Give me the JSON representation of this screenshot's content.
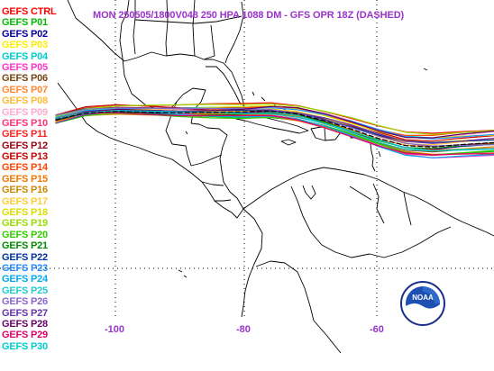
{
  "title": "MON 250505/1800V048  250 HPA 1088 DM - GFS OPR 18Z (DASHED)",
  "legend": [
    {
      "label": "GEFS CTRL",
      "color": "#ff0000"
    },
    {
      "label": "GEFS P01",
      "color": "#00bb00"
    },
    {
      "label": "GEFS P02",
      "color": "#000099"
    },
    {
      "label": "GEFS P03",
      "color": "#ffee00"
    },
    {
      "label": "GEFS P04",
      "color": "#00cccc"
    },
    {
      "label": "GEFS P05",
      "color": "#ff33cc"
    },
    {
      "label": "GEFS P06",
      "color": "#774411"
    },
    {
      "label": "GEFS P07",
      "color": "#ff8833"
    },
    {
      "label": "GEFS P08",
      "color": "#ffbb33"
    },
    {
      "label": "GEFS P09",
      "color": "#ffaacc"
    },
    {
      "label": "GEFS P10",
      "color": "#ff3377"
    },
    {
      "label": "GEFS P11",
      "color": "#ff2222"
    },
    {
      "label": "GEFS P12",
      "color": "#990011"
    },
    {
      "label": "GEFS P13",
      "color": "#cc0000"
    },
    {
      "label": "GEFS P14",
      "color": "#ff4400"
    },
    {
      "label": "GEFS P15",
      "color": "#ee7700"
    },
    {
      "label": "GEFS P16",
      "color": "#cc8800"
    },
    {
      "label": "GEFS P17",
      "color": "#ffcc33"
    },
    {
      "label": "GEFS P18",
      "color": "#dddd00"
    },
    {
      "label": "GEFS P19",
      "color": "#99dd00"
    },
    {
      "label": "GEFS P20",
      "color": "#33cc00"
    },
    {
      "label": "GEFS P21",
      "color": "#008800"
    },
    {
      "label": "GEFS P22",
      "color": "#003399"
    },
    {
      "label": "GEFS P23",
      "color": "#2288ff"
    },
    {
      "label": "GEFS P24",
      "color": "#00aaee"
    },
    {
      "label": "GEFS P25",
      "color": "#22cccc"
    },
    {
      "label": "GEFS P26",
      "color": "#8866cc"
    },
    {
      "label": "GEFS P27",
      "color": "#6633aa"
    },
    {
      "label": "GEFS P28",
      "color": "#660066"
    },
    {
      "label": "GEFS P29",
      "color": "#dd0066"
    },
    {
      "label": "GEFS P30",
      "color": "#00cccc"
    }
  ],
  "longitude_labels": [
    "-100",
    "-80",
    "-60"
  ],
  "logo_text": "NOAA",
  "colors": {
    "title": "#9933cc",
    "axis_labels": "#9933cc",
    "coastline": "#000000",
    "graticule": "#000000"
  }
}
